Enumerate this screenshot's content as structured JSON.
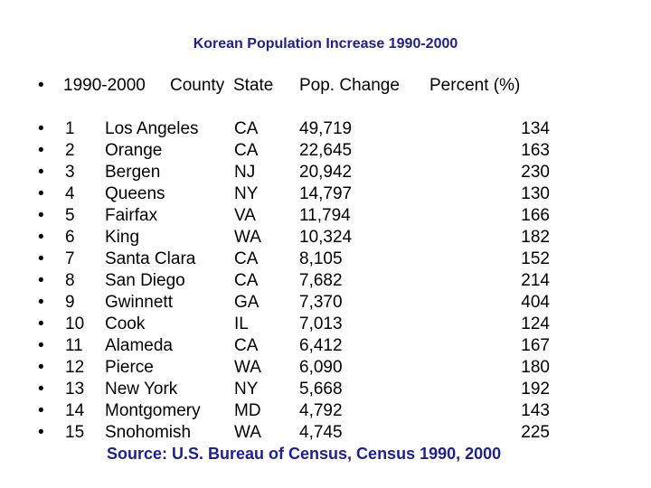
{
  "title": "Korean Population Increase 1990-2000",
  "bullet_glyph": "•",
  "header": {
    "year_range": "1990-2000",
    "county": "County",
    "state": "State",
    "pop_change": "Pop. Change",
    "percent": "Percent (%)"
  },
  "rows": [
    {
      "rank": "1",
      "county": "Los Angeles",
      "state": "CA",
      "pop_change": "49,719",
      "percent": "134"
    },
    {
      "rank": "2",
      "county": "Orange",
      "state": "CA",
      "pop_change": "22,645",
      "percent": "163"
    },
    {
      "rank": "3",
      "county": "Bergen",
      "state": "NJ",
      "pop_change": "20,942",
      "percent": "230"
    },
    {
      "rank": "4",
      "county": "Queens",
      "state": "NY",
      "pop_change": "14,797",
      "percent": "130"
    },
    {
      "rank": "5",
      "county": "Fairfax",
      "state": "VA",
      "pop_change": "11,794",
      "percent": "166"
    },
    {
      "rank": "6",
      "county": "King",
      "state": "WA",
      "pop_change": "10,324",
      "percent": "182"
    },
    {
      "rank": "7",
      "county": "Santa Clara",
      "state": "CA",
      "pop_change": "8,105",
      "percent": "152"
    },
    {
      "rank": "8",
      "county": "San Diego",
      "state": "CA",
      "pop_change": "7,682",
      "percent": "214"
    },
    {
      "rank": "9",
      "county": "Gwinnett",
      "state": "GA",
      "pop_change": "7,370",
      "percent": "404"
    },
    {
      "rank": "10",
      "county": "Cook",
      "state": "IL",
      "pop_change": "7,013",
      "percent": "124"
    },
    {
      "rank": "11",
      "county": "Alameda",
      "state": "CA",
      "pop_change": "6,412",
      "percent": "167"
    },
    {
      "rank": "12",
      "county": "Pierce",
      "state": "WA",
      "pop_change": "6,090",
      "percent": "180"
    },
    {
      "rank": "13",
      "county": "New York",
      "state": "NY",
      "pop_change": "5,668",
      "percent": "192"
    },
    {
      "rank": "14",
      "county": "Montgomery",
      "state": "MD",
      "pop_change": "4,792",
      "percent": "143"
    },
    {
      "rank": "15",
      "county": "Snohomish",
      "state": "WA",
      "pop_change": "4,745",
      "percent": "225"
    }
  ],
  "source": "Source: U.S. Bureau of Census, Census 1990, 2000",
  "colors": {
    "title": "#1f1f8f",
    "body_text": "#000000",
    "background": "#ffffff"
  }
}
